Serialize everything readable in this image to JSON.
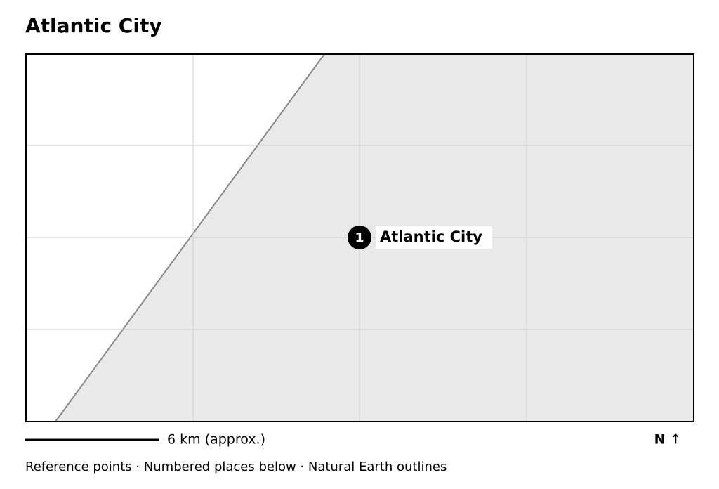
{
  "title": "Atlantic City",
  "places": [
    {
      "number": "1",
      "label": "Atlantic City"
    }
  ],
  "scale_label": "6 km (approx.)",
  "north_label": "N ↑",
  "footer": "Reference points · Numbered places below · Natural Earth outlines"
}
